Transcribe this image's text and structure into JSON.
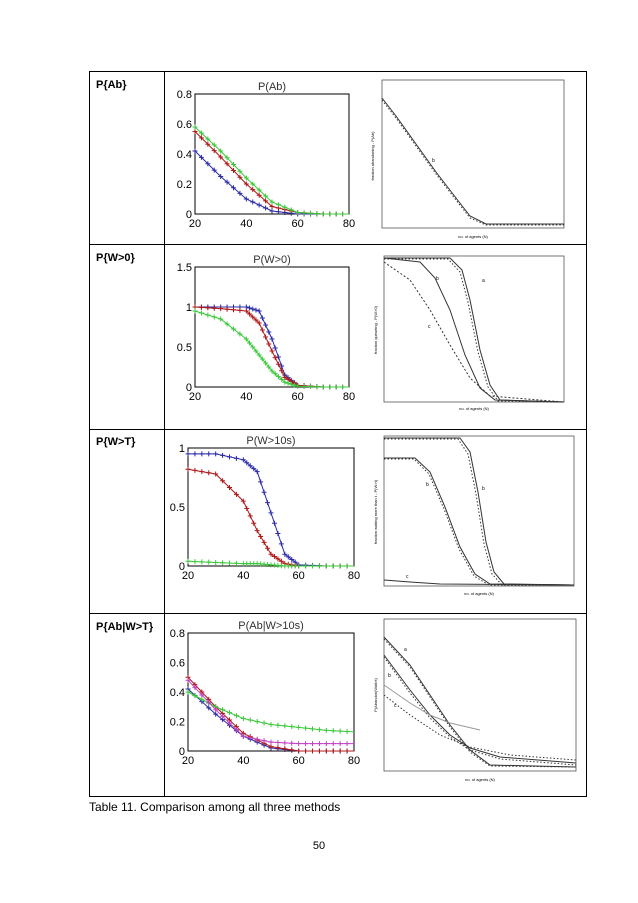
{
  "rows": [
    {
      "label": "P{Ab}",
      "left_title": "P(Ab)",
      "right_curve_labels": [
        "b"
      ],
      "right_ylabel": "fraction abandoning - P(Ab)"
    },
    {
      "label": "P{W>0}",
      "left_title": "P(W>0)",
      "right_curve_labels": [
        "a",
        "b",
        "c"
      ],
      "right_ylabel": "fraction queueing - P(W>0)"
    },
    {
      "label": "P{W>T}",
      "left_title": "P(W>10s)",
      "right_curve_labels": [
        "b",
        "b",
        "c"
      ],
      "right_ylabel": "fraction waiting more than t - P(W>t)"
    },
    {
      "label": "P{Ab|W>T}",
      "left_title": "P(Ab|W>10s)",
      "right_curve_labels": [
        "a",
        "b",
        "c"
      ],
      "right_ylabel": "P(Abandon|Wait>t)"
    }
  ],
  "xlabel": "no. of agents (N)",
  "caption": "Table 11. Comparison among all three methods",
  "page_number": "50",
  "colors": {
    "blue": "#2a2aa8",
    "red": "#b01818",
    "green": "#3cc83c",
    "magenta": "#c040c0"
  },
  "chart_data": [
    {
      "type": "line",
      "title": "P(Ab)",
      "x": [
        20,
        30,
        40,
        50,
        60,
        70,
        80
      ],
      "ylim": [
        0,
        0.8
      ],
      "xlim": [
        20,
        80
      ],
      "yticks": [
        "0",
        "0.2",
        "0.4",
        "0.6",
        "0.8"
      ],
      "xticks": [
        "20",
        "40",
        "60",
        "80"
      ],
      "series": [
        {
          "name": "blue",
          "values": [
            0.42,
            0.25,
            0.1,
            0.02,
            0.0,
            0.0,
            0.0
          ]
        },
        {
          "name": "red",
          "values": [
            0.55,
            0.38,
            0.2,
            0.05,
            0.01,
            0.0,
            0.0
          ]
        },
        {
          "name": "green",
          "values": [
            0.58,
            0.42,
            0.24,
            0.08,
            0.01,
            0.0,
            0.0
          ]
        }
      ]
    },
    {
      "type": "line",
      "title": "P(W>0)",
      "x": [
        20,
        30,
        40,
        45,
        50,
        55,
        60,
        70,
        80
      ],
      "ylim": [
        0,
        1.5
      ],
      "xlim": [
        20,
        80
      ],
      "yticks": [
        "0",
        "0.5",
        "1",
        "1.5"
      ],
      "xticks": [
        "20",
        "40",
        "60",
        "80"
      ],
      "series": [
        {
          "name": "blue",
          "values": [
            1.0,
            1.0,
            1.0,
            0.95,
            0.6,
            0.15,
            0.02,
            0.0,
            0.0
          ]
        },
        {
          "name": "red",
          "values": [
            1.0,
            0.98,
            0.95,
            0.8,
            0.45,
            0.12,
            0.02,
            0.0,
            0.0
          ]
        },
        {
          "name": "green",
          "values": [
            0.95,
            0.85,
            0.6,
            0.4,
            0.2,
            0.06,
            0.01,
            0.0,
            0.0
          ]
        }
      ]
    },
    {
      "type": "line",
      "title": "P(W>10s)",
      "x": [
        20,
        30,
        40,
        45,
        50,
        55,
        60,
        70,
        80
      ],
      "ylim": [
        0,
        1
      ],
      "xlim": [
        20,
        80
      ],
      "yticks": [
        "0",
        "0.5",
        "1"
      ],
      "xticks": [
        "20",
        "40",
        "60",
        "80"
      ],
      "series": [
        {
          "name": "blue",
          "values": [
            0.95,
            0.95,
            0.9,
            0.8,
            0.45,
            0.1,
            0.01,
            0.0,
            0.0
          ]
        },
        {
          "name": "red",
          "values": [
            0.82,
            0.78,
            0.55,
            0.3,
            0.1,
            0.02,
            0.0,
            0.0,
            0.0
          ]
        },
        {
          "name": "green",
          "values": [
            0.04,
            0.03,
            0.02,
            0.02,
            0.01,
            0.0,
            0.0,
            0.0,
            0.0
          ]
        }
      ]
    },
    {
      "type": "line",
      "title": "P(Ab|W>10s)",
      "x": [
        20,
        30,
        40,
        50,
        60,
        70,
        80
      ],
      "ylim": [
        0,
        0.8
      ],
      "xlim": [
        20,
        80
      ],
      "yticks": [
        "0",
        "0.2",
        "0.4",
        "0.6",
        "0.8"
      ],
      "xticks": [
        "20",
        "40",
        "60",
        "80"
      ],
      "series": [
        {
          "name": "blue",
          "values": [
            0.42,
            0.25,
            0.1,
            0.02,
            0.0,
            0.0,
            0.0
          ]
        },
        {
          "name": "red",
          "values": [
            0.5,
            0.3,
            0.12,
            0.03,
            0.0,
            0.0,
            0.0
          ]
        },
        {
          "name": "green",
          "values": [
            0.4,
            0.3,
            0.22,
            0.18,
            0.16,
            0.14,
            0.13
          ]
        },
        {
          "name": "magenta",
          "values": [
            0.48,
            0.28,
            0.1,
            0.06,
            0.05,
            0.05,
            0.05
          ]
        }
      ]
    }
  ]
}
